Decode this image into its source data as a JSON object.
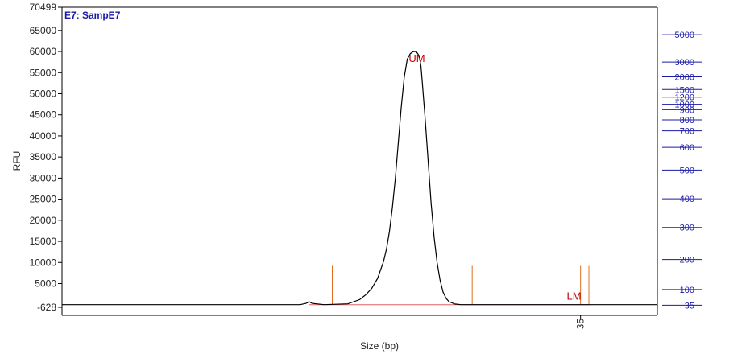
{
  "chart_data": {
    "type": "line",
    "title": "E7: SampE7",
    "xlabel": "Size (bp)",
    "ylabel": "RFU",
    "ylim": [
      -628,
      70499
    ],
    "yticks": [
      -628,
      5000,
      10000,
      15000,
      20000,
      25000,
      30000,
      35000,
      40000,
      45000,
      50000,
      55000,
      60000,
      65000,
      70499
    ],
    "ytick_labels": [
      "-628",
      "5000",
      "10000",
      "15000",
      "20000",
      "25000",
      "30000",
      "35000",
      "40000",
      "45000",
      "50000",
      "55000",
      "60000",
      "65000",
      "70499"
    ],
    "xlim": [
      0,
      1000
    ],
    "xticks": [
      {
        "x": 871,
        "label": "35"
      }
    ],
    "right_axis": {
      "labels": [
        "5000",
        "3000",
        "2000",
        "1500",
        "1200",
        "1000",
        "900",
        "800",
        "700",
        "600",
        "500",
        "400",
        "300",
        "200",
        "100",
        "35"
      ],
      "rfu": [
        64000,
        57500,
        54000,
        51000,
        49200,
        47500,
        46200,
        43800,
        41200,
        37300,
        31900,
        25100,
        18300,
        10700,
        3600,
        -130
      ]
    },
    "markers": [
      {
        "label": "UM",
        "x": 596,
        "y": 57500,
        "color": "#c00000"
      },
      {
        "label": "LM",
        "x": 860,
        "y": 1200,
        "color": "#c00000"
      }
    ],
    "region_lines": {
      "x": [
        454,
        689,
        871,
        885
      ],
      "top": 9200,
      "color": "#e07020"
    },
    "baseline": {
      "x_from": 415,
      "x_to": 885,
      "y": 0,
      "color": "#e06060"
    },
    "series": [
      {
        "color": "#000000",
        "x": [
          0,
          400,
          410,
          415,
          420,
          440,
          480,
          500,
          510,
          520,
          530,
          540,
          545,
          550,
          555,
          560,
          565,
          570,
          575,
          580,
          585,
          590,
          592,
          595,
          600,
          603,
          605,
          610,
          615,
          620,
          625,
          630,
          635,
          640,
          645,
          650,
          660,
          670,
          680,
          700,
          1000
        ],
        "y": [
          0,
          0,
          300,
          700,
          300,
          0,
          200,
          1200,
          2300,
          3800,
          6200,
          10200,
          13200,
          17400,
          23000,
          30000,
          38500,
          47000,
          54000,
          58200,
          59500,
          60000,
          60000,
          60000,
          59000,
          56500,
          53000,
          44000,
          34000,
          24000,
          16000,
          10000,
          5800,
          3000,
          1500,
          700,
          150,
          0,
          0,
          0,
          0
        ]
      }
    ]
  }
}
